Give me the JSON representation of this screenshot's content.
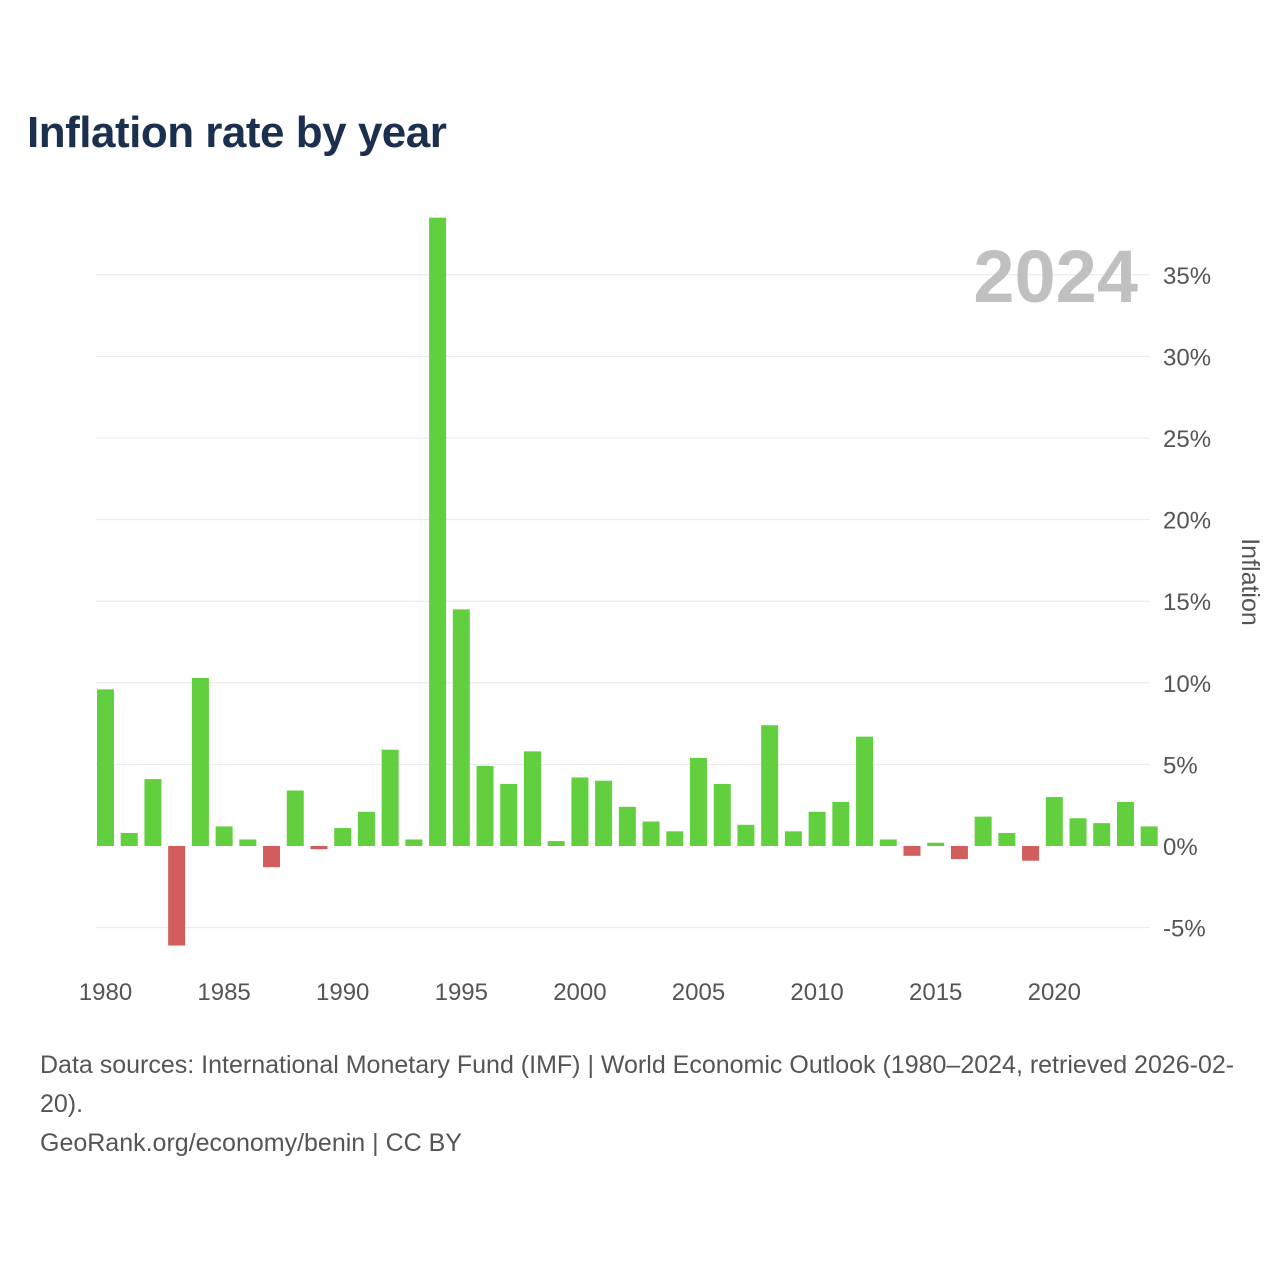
{
  "title": "Inflation rate by year",
  "chart_data": {
    "type": "bar",
    "title": "Inflation rate by year",
    "watermark": "2024",
    "ylabel": "Inflation",
    "xlabel": "",
    "ylim": [
      -7,
      39
    ],
    "y_ticks": [
      -5,
      0,
      5,
      10,
      15,
      20,
      25,
      30,
      35
    ],
    "y_tick_labels": [
      "-5%",
      "0%",
      "5%",
      "10%",
      "15%",
      "20%",
      "25%",
      "30%",
      "35%"
    ],
    "x_ticks": [
      1980,
      1985,
      1990,
      1995,
      2000,
      2005,
      2010,
      2015,
      2020
    ],
    "x_tick_labels": [
      "1980",
      "1985",
      "1990",
      "1995",
      "2000",
      "2005",
      "2010",
      "2015",
      "2020"
    ],
    "grid": true,
    "y_axis_side": "right",
    "categories": [
      1980,
      1981,
      1982,
      1983,
      1984,
      1985,
      1986,
      1987,
      1988,
      1989,
      1990,
      1991,
      1992,
      1993,
      1994,
      1995,
      1996,
      1997,
      1998,
      1999,
      2000,
      2001,
      2002,
      2003,
      2004,
      2005,
      2006,
      2007,
      2008,
      2009,
      2010,
      2011,
      2012,
      2013,
      2014,
      2015,
      2016,
      2017,
      2018,
      2019,
      2020,
      2021,
      2022,
      2023,
      2024
    ],
    "values": [
      9.6,
      0.8,
      4.1,
      -6.1,
      10.3,
      1.2,
      0.4,
      -1.3,
      3.4,
      -0.2,
      1.1,
      2.1,
      5.9,
      0.4,
      38.5,
      14.5,
      4.9,
      3.8,
      5.8,
      0.3,
      4.2,
      4.0,
      2.4,
      1.5,
      0.9,
      5.4,
      3.8,
      1.3,
      7.4,
      0.9,
      2.1,
      2.7,
      6.7,
      0.4,
      -0.6,
      0.2,
      -0.8,
      1.8,
      0.8,
      -0.9,
      3.0,
      1.7,
      1.4,
      2.7,
      1.2
    ],
    "colors": {
      "positive": "#62cf3f",
      "negative": "#d25d5d",
      "grid": "#e8e8e8",
      "tick": "#555555",
      "watermark": "#c0c0c0"
    }
  },
  "sources": {
    "line1": "Data sources: International Monetary Fund (IMF) | World Economic Outlook (1980–2024, retrieved 2026-02-20).",
    "line2": "GeoRank.org/economy/benin | CC BY"
  }
}
